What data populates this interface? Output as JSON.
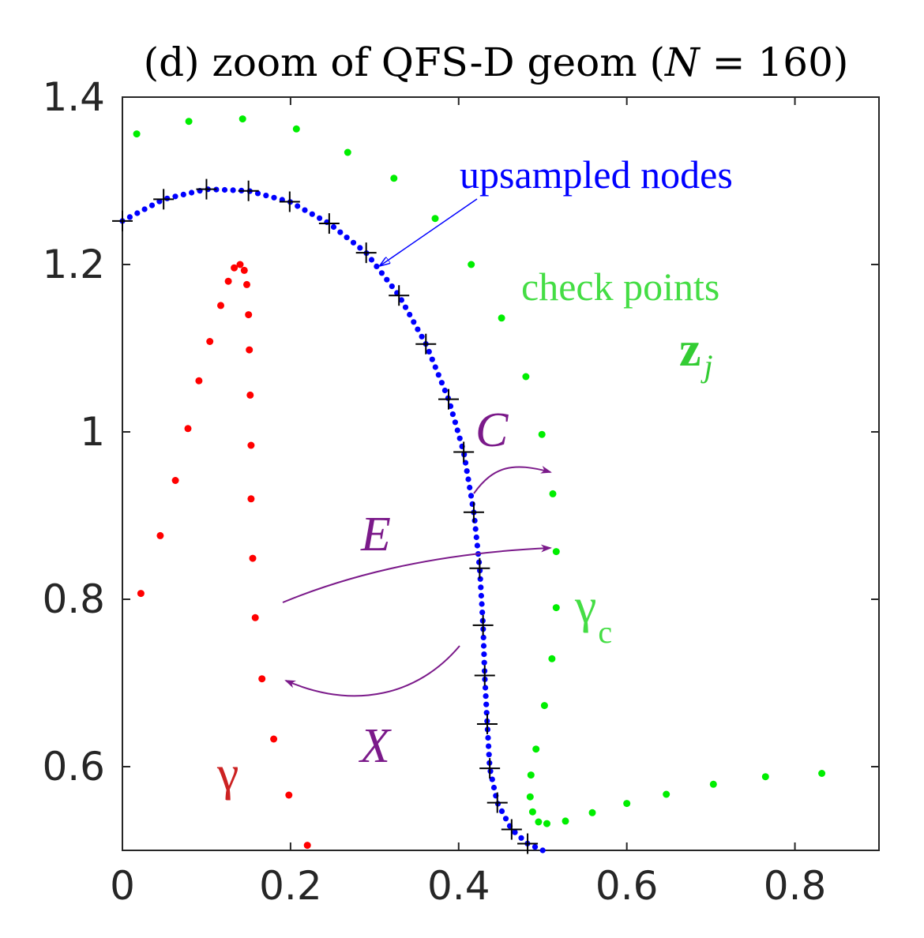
{
  "chart_data": {
    "type": "scatter",
    "title": "(d) zoom of QFS-D geom (N = 160)",
    "title_parts": {
      "before": "(d) zoom of QFS-D geom (",
      "var": "N",
      "after": " = 160)"
    },
    "xlim": [
      0,
      0.9
    ],
    "ylim": [
      0.5,
      1.4
    ],
    "xticks": [
      0,
      0.2,
      0.4,
      0.6,
      0.8
    ],
    "xtick_labels": [
      "0",
      "0.2",
      "0.4",
      "0.6",
      "0.8"
    ],
    "yticks": [
      0.6,
      0.8,
      1,
      1.2,
      1.4
    ],
    "ytick_labels": [
      "0.6",
      "0.8",
      "1",
      "1.2",
      "1.4"
    ],
    "grid": false,
    "series": [
      {
        "key": "gamma",
        "color": "#ff0000",
        "marker": "dot",
        "points": [
          [
            0.022,
            0.807
          ],
          [
            0.045,
            0.876
          ],
          [
            0.063,
            0.942
          ],
          [
            0.078,
            1.004
          ],
          [
            0.091,
            1.061
          ],
          [
            0.104,
            1.108
          ],
          [
            0.117,
            1.151
          ],
          [
            0.126,
            1.18
          ],
          [
            0.133,
            1.196
          ],
          [
            0.14,
            1.2
          ],
          [
            0.145,
            1.193
          ],
          [
            0.148,
            1.176
          ],
          [
            0.15,
            1.14
          ],
          [
            0.151,
            1.098
          ],
          [
            0.152,
            1.044
          ],
          [
            0.153,
            0.984
          ],
          [
            0.153,
            0.92
          ],
          [
            0.155,
            0.849
          ],
          [
            0.158,
            0.778
          ],
          [
            0.166,
            0.705
          ],
          [
            0.18,
            0.633
          ],
          [
            0.198,
            0.566
          ],
          [
            0.22,
            0.506
          ]
        ]
      },
      {
        "key": "gamma_c",
        "color": "#00ee00",
        "marker": "dot",
        "points": [
          [
            0.017,
            1.356
          ],
          [
            0.079,
            1.371
          ],
          [
            0.143,
            1.374
          ],
          [
            0.207,
            1.362
          ],
          [
            0.268,
            1.334
          ],
          [
            0.323,
            1.303
          ],
          [
            0.372,
            1.255
          ],
          [
            0.415,
            1.2
          ],
          [
            0.451,
            1.136
          ],
          [
            0.48,
            1.066
          ],
          [
            0.499,
            0.997
          ],
          [
            0.512,
            0.926
          ],
          [
            0.516,
            0.857
          ],
          [
            0.516,
            0.79
          ],
          [
            0.511,
            0.729
          ],
          [
            0.502,
            0.673
          ],
          [
            0.492,
            0.621
          ],
          [
            0.486,
            0.59
          ],
          [
            0.485,
            0.564
          ],
          [
            0.488,
            0.546
          ],
          [
            0.495,
            0.534
          ],
          [
            0.505,
            0.532
          ],
          [
            0.527,
            0.535
          ],
          [
            0.559,
            0.545
          ],
          [
            0.6,
            0.556
          ],
          [
            0.647,
            0.567
          ],
          [
            0.703,
            0.579
          ],
          [
            0.765,
            0.588
          ],
          [
            0.832,
            0.592
          ]
        ]
      },
      {
        "key": "nodes",
        "color": "#000000",
        "marker": "plus",
        "points": [
          [
            0.0,
            1.252
          ],
          [
            0.049,
            1.278
          ],
          [
            0.1,
            1.29
          ],
          [
            0.15,
            1.288
          ],
          [
            0.199,
            1.275
          ],
          [
            0.246,
            1.249
          ],
          [
            0.29,
            1.214
          ],
          [
            0.329,
            1.163
          ],
          [
            0.361,
            1.105
          ],
          [
            0.388,
            1.039
          ],
          [
            0.406,
            0.976
          ],
          [
            0.418,
            0.904
          ],
          [
            0.425,
            0.837
          ],
          [
            0.429,
            0.769
          ],
          [
            0.431,
            0.709
          ],
          [
            0.434,
            0.651
          ],
          [
            0.437,
            0.598
          ],
          [
            0.446,
            0.557
          ],
          [
            0.463,
            0.525
          ],
          [
            0.482,
            0.508
          ]
        ]
      }
    ],
    "curve": {
      "key": "upsampled",
      "color": "#0000ff",
      "count": 110,
      "path": [
        [
          0.0,
          1.252
        ],
        [
          0.049,
          1.278
        ],
        [
          0.1,
          1.29
        ],
        [
          0.15,
          1.288
        ],
        [
          0.199,
          1.275
        ],
        [
          0.246,
          1.249
        ],
        [
          0.29,
          1.214
        ],
        [
          0.329,
          1.163
        ],
        [
          0.361,
          1.105
        ],
        [
          0.388,
          1.039
        ],
        [
          0.406,
          0.976
        ],
        [
          0.418,
          0.904
        ],
        [
          0.425,
          0.837
        ],
        [
          0.429,
          0.769
        ],
        [
          0.431,
          0.709
        ],
        [
          0.434,
          0.651
        ],
        [
          0.437,
          0.598
        ],
        [
          0.446,
          0.557
        ],
        [
          0.463,
          0.525
        ],
        [
          0.482,
          0.508
        ],
        [
          0.5,
          0.5
        ]
      ]
    },
    "annotations": [
      {
        "key": "upsampled",
        "text": "upsampled nodes",
        "color": "#0000ff"
      },
      {
        "key": "check",
        "text": "check points",
        "color": "#44dd44"
      },
      {
        "key": "zj",
        "text": "z",
        "sub": "j",
        "color": "#33cc33"
      },
      {
        "key": "C",
        "text": "C",
        "color": "#7b1a8a"
      },
      {
        "key": "E",
        "text": "E",
        "color": "#7b1a8a"
      },
      {
        "key": "X",
        "text": "X",
        "color": "#7b1a8a"
      },
      {
        "key": "gamma_c",
        "text": "γ",
        "sub": "c",
        "color": "#44dd44"
      },
      {
        "key": "gamma",
        "text": "γ",
        "color": "#cc2222"
      }
    ],
    "arrow_color": "#7b1a8a",
    "axis_color": "#262626"
  }
}
